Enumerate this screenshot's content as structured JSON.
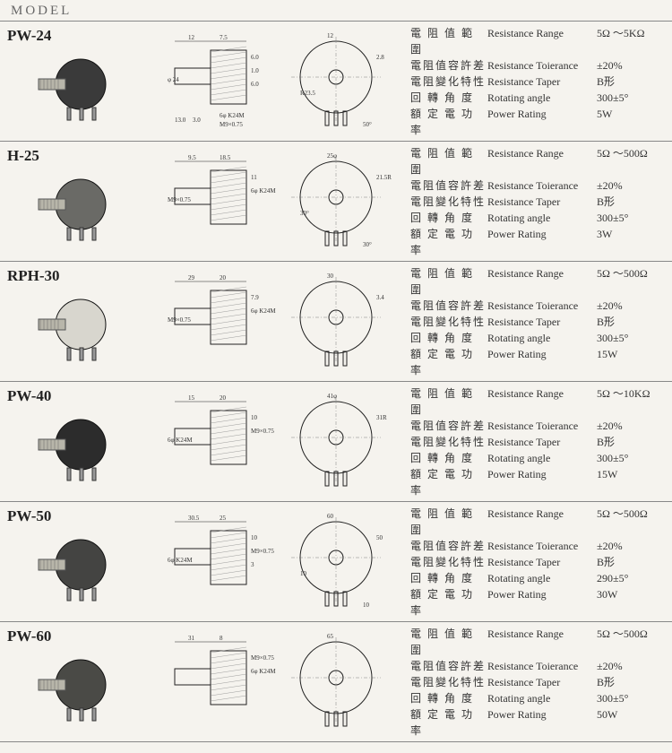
{
  "header": "MODEL",
  "spec_labels": {
    "cn": [
      "電 阻 值 範 圍",
      "電阻值容許差",
      "電阻變化特性",
      "回 轉 角 度",
      "額 定 電 功 率"
    ],
    "en": [
      "Resistance Range",
      "Resistance Toierance",
      "Resistance Taper",
      "Rotating angle",
      "Power Rating"
    ]
  },
  "models": [
    {
      "name": "PW-24",
      "photo_color": "#3a3a3a",
      "specs": [
        "5Ω ～5KΩ",
        "±20%",
        "B形",
        "300±5°",
        "5W"
      ],
      "diag1_labels": [
        "12",
        "7.5",
        "6.0",
        "1.0",
        "φ 24",
        "6.0",
        "6φ K24M",
        "M9×0.75",
        "3.0",
        "13.0"
      ],
      "diag2_labels": [
        "12",
        "2.8",
        "R23.5",
        "50°"
      ]
    },
    {
      "name": "H-25",
      "photo_color": "#6a6a66",
      "specs": [
        "5Ω ～500Ω",
        "±20%",
        "B形",
        "300±5°",
        "3W"
      ],
      "diag1_labels": [
        "9.5",
        "18.5",
        "11",
        "6φ K24M",
        "M9×0.75"
      ],
      "diag2_labels": [
        "25φ",
        "21.5R",
        "30°",
        "30°"
      ]
    },
    {
      "name": "RPH-30",
      "photo_color": "#d8d6ce",
      "specs": [
        "5Ω ～500Ω",
        "±20%",
        "B形",
        "300±5°",
        "15W"
      ],
      "diag1_labels": [
        "29",
        "20",
        "7.9",
        "6φ K24M",
        "M9×0.75"
      ],
      "diag2_labels": [
        "30",
        "3.4"
      ]
    },
    {
      "name": "PW-40",
      "photo_color": "#2c2c2c",
      "specs": [
        "5Ω ～10KΩ",
        "±20%",
        "B形",
        "300±5°",
        "15W"
      ],
      "diag1_labels": [
        "15",
        "20",
        "10",
        "M9×0.75",
        "6φ K24M"
      ],
      "diag2_labels": [
        "41φ",
        "31R"
      ]
    },
    {
      "name": "PW-50",
      "photo_color": "#444442",
      "specs": [
        "5Ω ～500Ω",
        "±20%",
        "B形",
        "290±5°",
        "30W"
      ],
      "diag1_labels": [
        "30.5",
        "25",
        "10",
        "M9×0.75",
        "6φ K24M",
        "3"
      ],
      "diag2_labels": [
        "60",
        "50",
        "10",
        "10"
      ]
    },
    {
      "name": "PW-60",
      "photo_color": "#4a4a46",
      "specs": [
        "5Ω ～500Ω",
        "±20%",
        "B形",
        "300±5°",
        "50W"
      ],
      "diag1_labels": [
        "31",
        "8",
        "M9×0.75",
        "6φ K24M"
      ],
      "diag2_labels": [
        "65"
      ]
    }
  ]
}
